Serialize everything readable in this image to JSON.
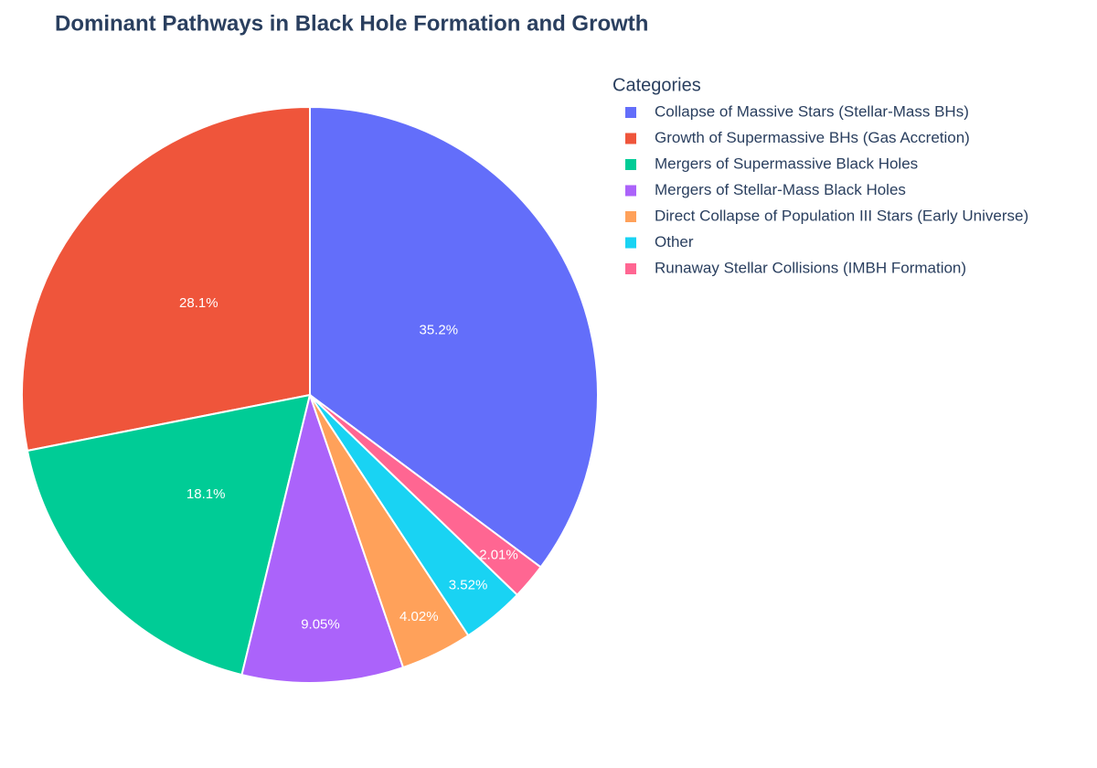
{
  "chart_data": {
    "type": "pie",
    "title": "Dominant Pathways in Black Hole Formation and Growth",
    "legend_title": "Categories",
    "legend": "top-right",
    "categories": [
      "Collapse of Massive Stars (Stellar-Mass BHs)",
      "Growth of Supermassive BHs (Gas Accretion)",
      "Mergers of Supermassive Black Holes",
      "Mergers of Stellar-Mass Black Holes",
      "Direct Collapse of Population III Stars (Early Universe)",
      "Other",
      "Runaway Stellar Collisions (IMBH Formation)"
    ],
    "values": [
      35.2,
      28.1,
      18.1,
      9.05,
      4.02,
      3.52,
      2.01
    ],
    "value_labels": [
      "35.2%",
      "28.1%",
      "18.1%",
      "9.05%",
      "4.02%",
      "3.52%",
      "2.01%"
    ],
    "colors": [
      "#636efa",
      "#ef553b",
      "#00cc96",
      "#ab63fa",
      "#ffa15a",
      "#19d3f3",
      "#ff6692"
    ]
  }
}
